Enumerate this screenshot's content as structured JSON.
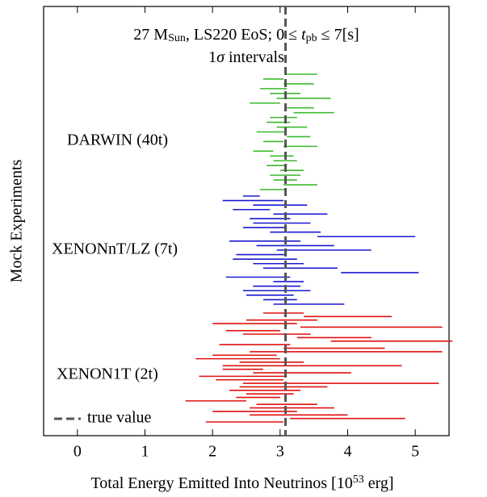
{
  "chart_data": {
    "type": "interval",
    "title_parts": [
      {
        "text": "27 M"
      },
      {
        "text": "Sun",
        "sub": true
      },
      {
        "text": ", LS220 EoS; 0 ≤ "
      },
      {
        "text": "t",
        "italic": true
      },
      {
        "text": "pb",
        "sub": true
      },
      {
        "text": " ≤ 7[s]"
      }
    ],
    "subtitle_parts": [
      {
        "text": "1"
      },
      {
        "text": "σ",
        "italic": true
      },
      {
        "text": " intervals"
      }
    ],
    "xlabel_parts": [
      {
        "text": "Total Energy Emitted Into Neutrinos [10"
      },
      {
        "text": "53",
        "sup": true
      },
      {
        "text": " erg]"
      }
    ],
    "ylabel": "Mock Experiments",
    "xlim": [
      -0.5,
      5.5
    ],
    "xticks": [
      0,
      1,
      2,
      3,
      4,
      5
    ],
    "true_value": 3.08,
    "true_value_color": "#555555",
    "legend_label": "true value",
    "series": [
      {
        "name": "DARWIN (40t)",
        "color": "#3cb82e",
        "low": [
          3.1,
          2.75,
          3.05,
          2.7,
          2.85,
          2.95,
          2.55,
          3.1,
          3.2,
          2.85,
          2.8,
          2.95,
          2.65,
          3.1,
          2.75,
          3.05,
          2.6,
          2.85,
          2.9,
          2.8,
          3.0,
          2.85,
          2.9,
          3.05,
          2.7
        ],
        "high": [
          3.55,
          3.05,
          3.5,
          3.1,
          3.3,
          3.75,
          3.0,
          3.5,
          3.8,
          3.25,
          3.15,
          3.4,
          3.1,
          3.45,
          3.05,
          3.55,
          2.9,
          3.2,
          3.25,
          3.1,
          3.35,
          3.3,
          3.25,
          3.55,
          3.1
        ]
      },
      {
        "name": "XENONnT/LZ (7t)",
        "color": "#1a1ad0",
        "low": [
          2.45,
          2.15,
          2.6,
          2.3,
          2.9,
          2.55,
          2.6,
          2.45,
          2.85,
          3.55,
          2.25,
          2.65,
          2.95,
          2.35,
          2.3,
          2.6,
          2.75,
          3.9,
          2.2,
          2.9,
          2.6,
          2.45,
          2.5,
          2.75,
          2.9
        ],
        "high": [
          2.7,
          3.05,
          3.4,
          2.85,
          3.7,
          3.15,
          3.45,
          3.1,
          3.6,
          5.0,
          3.3,
          3.8,
          4.35,
          3.1,
          3.25,
          3.35,
          3.85,
          5.05,
          3.15,
          3.35,
          3.3,
          3.45,
          3.2,
          3.25,
          3.95
        ]
      },
      {
        "name": "XENON1T (2t)",
        "color": "#e01010",
        "low": [
          2.75,
          3.35,
          2.5,
          2.0,
          3.3,
          2.2,
          2.45,
          3.25,
          3.75,
          2.1,
          3.05,
          2.55,
          2.0,
          1.75,
          2.4,
          2.15,
          2.15,
          2.6,
          1.8,
          2.05,
          2.45,
          2.4,
          2.25,
          2.5,
          2.35,
          1.6,
          2.65,
          2.55,
          2.0,
          2.55,
          3.15,
          1.9
        ],
        "high": [
          3.35,
          4.65,
          3.55,
          3.25,
          5.4,
          3.0,
          3.45,
          4.35,
          5.55,
          3.15,
          4.55,
          5.4,
          2.95,
          3.0,
          3.35,
          4.8,
          2.75,
          4.05,
          3.1,
          3.05,
          5.35,
          3.7,
          3.3,
          3.2,
          3.0,
          2.5,
          3.55,
          3.8,
          3.25,
          4.0,
          4.85,
          3.05
        ]
      }
    ]
  }
}
